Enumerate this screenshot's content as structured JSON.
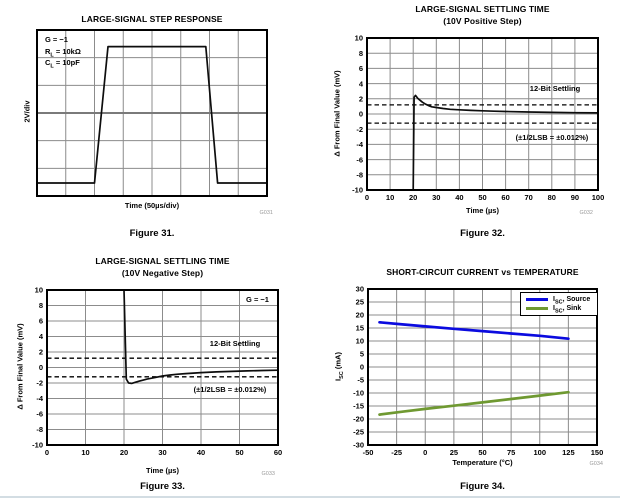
{
  "page": {
    "background": "#ffffff"
  },
  "chart_data": [
    {
      "type": "line",
      "figure": "Figure 31.",
      "title": "LARGE-SIGNAL STEP RESPONSE",
      "xlabel": "Time (50µs/div)",
      "ylabel": "2V/div",
      "scope_grid": true,
      "xlim": [
        0,
        8
      ],
      "ylim": [
        0,
        6
      ],
      "grid": "on",
      "annotations": [
        "G = −1",
        "RL = 10kΩ",
        "CL = 10pF"
      ],
      "series": [
        {
          "name": "output step response",
          "points": [
            [
              0,
              0.47
            ],
            [
              2.0,
              0.47
            ],
            [
              2.47,
              5.4
            ],
            [
              5.87,
              5.4
            ],
            [
              6.28,
              0.47
            ],
            [
              8,
              0.47
            ]
          ]
        }
      ]
    },
    {
      "type": "line",
      "figure": "Figure 32.",
      "title": "LARGE-SIGNAL SETTLING TIME",
      "subtitle": "(10V Positive Step)",
      "xlabel": "Time (µs)",
      "ylabel": "Δ From Final Value (mV)",
      "xlim": [
        0,
        100
      ],
      "ylim": [
        -10,
        10
      ],
      "xticks": [
        0,
        10,
        20,
        30,
        40,
        50,
        60,
        70,
        80,
        90,
        100
      ],
      "yticks": [
        -10,
        -8,
        -6,
        -4,
        -2,
        0,
        2,
        4,
        6,
        8,
        10
      ],
      "grid": "on",
      "dashed_y": [
        1.2,
        -1.2
      ],
      "annotations": [
        "12-Bit Settling",
        "(±1/2LSB = ±0.012%)"
      ],
      "series": [
        {
          "name": "settling error",
          "points": [
            [
              20,
              -10
            ],
            [
              20.4,
              2.2
            ],
            [
              21,
              2.45
            ],
            [
              22,
              2.05
            ],
            [
              23,
              1.8
            ],
            [
              24,
              1.55
            ],
            [
              25,
              1.35
            ],
            [
              26,
              1.2
            ],
            [
              27,
              1.05
            ],
            [
              28,
              0.95
            ],
            [
              30,
              0.85
            ],
            [
              33,
              0.72
            ],
            [
              36,
              0.62
            ],
            [
              40,
              0.55
            ],
            [
              45,
              0.47
            ],
            [
              50,
              0.42
            ],
            [
              55,
              0.37
            ],
            [
              60,
              0.33
            ],
            [
              70,
              0.26
            ],
            [
              80,
              0.21
            ],
            [
              90,
              0.17
            ],
            [
              100,
              0.15
            ]
          ]
        }
      ]
    },
    {
      "type": "line",
      "figure": "Figure 33.",
      "title": "LARGE-SIGNAL SETTLING TIME",
      "subtitle": "(10V Negative Step)",
      "xlabel": "Time (µs)",
      "ylabel": "Δ From Final Value (mV)",
      "xlim": [
        0,
        60
      ],
      "ylim": [
        -10,
        10
      ],
      "xticks": [
        0,
        10,
        20,
        30,
        40,
        50,
        60
      ],
      "yticks": [
        -10,
        -8,
        -6,
        -4,
        -2,
        0,
        2,
        4,
        6,
        8,
        10
      ],
      "grid": "on",
      "dashed_y": [
        1.2,
        -1.2
      ],
      "annotations": [
        "G = −1",
        "12-Bit Settling",
        "(±1/2LSB = ±0.012%)"
      ],
      "series": [
        {
          "name": "settling error",
          "points": [
            [
              20,
              10
            ],
            [
              20.6,
              -1.5
            ],
            [
              21.2,
              -2.0
            ],
            [
              22,
              -2.05
            ],
            [
              23,
              -1.9
            ],
            [
              24,
              -1.75
            ],
            [
              25,
              -1.62
            ],
            [
              26,
              -1.5
            ],
            [
              27,
              -1.4
            ],
            [
              28,
              -1.3
            ],
            [
              30,
              -1.1
            ],
            [
              32,
              -0.97
            ],
            [
              34,
              -0.87
            ],
            [
              36,
              -0.79
            ],
            [
              38,
              -0.72
            ],
            [
              40,
              -0.66
            ],
            [
              44,
              -0.57
            ],
            [
              48,
              -0.5
            ],
            [
              52,
              -0.44
            ],
            [
              56,
              -0.39
            ],
            [
              60,
              -0.35
            ]
          ]
        }
      ]
    },
    {
      "type": "line",
      "figure": "Figure 34.",
      "title": "SHORT-CIRCUIT CURRENT vs TEMPERATURE",
      "xlabel": "Temperature (°C)",
      "ylabel": "ISC (mA)",
      "xlim": [
        -50,
        150
      ],
      "ylim": [
        -30,
        30
      ],
      "xticks": [
        -50,
        -25,
        0,
        25,
        50,
        75,
        100,
        125,
        150
      ],
      "yticks": [
        -30,
        -25,
        -20,
        -15,
        -10,
        -5,
        0,
        5,
        10,
        15,
        20,
        25,
        30
      ],
      "grid": "on",
      "legend_position": "top-right",
      "series": [
        {
          "name": "ISC, Source",
          "color": "#0b0bdf",
          "points": [
            [
              -40,
              17.2
            ],
            [
              -20,
              16.4
            ],
            [
              0,
              15.6
            ],
            [
              25,
              14.7
            ],
            [
              50,
              13.8
            ],
            [
              75,
              12.9
            ],
            [
              100,
              12.0
            ],
            [
              125,
              10.9
            ]
          ]
        },
        {
          "name": "ISC, Sink",
          "color": "#6f9931",
          "points": [
            [
              -40,
              -18.3
            ],
            [
              -20,
              -17.2
            ],
            [
              0,
              -16.1
            ],
            [
              25,
              -14.9
            ],
            [
              50,
              -13.6
            ],
            [
              75,
              -12.3
            ],
            [
              100,
              -11.0
            ],
            [
              125,
              -9.7
            ]
          ]
        }
      ]
    }
  ],
  "figures": {
    "f31": {
      "caption": "Figure 31.",
      "code": "G031",
      "conditions": [
        {
          "pre": "G",
          "sub": "",
          "post": " = −1"
        },
        {
          "pre": "R",
          "sub": "L",
          "post": " = 10kΩ"
        },
        {
          "pre": "C",
          "sub": "L",
          "post": " = 10pF"
        }
      ]
    },
    "f32": {
      "caption": "Figure 32.",
      "code": "G032"
    },
    "f33": {
      "caption": "Figure 33.",
      "code": "G033"
    },
    "f34": {
      "caption": "Figure 34.",
      "code": "G034",
      "ylabel_parts": {
        "pre": "I",
        "sub": "SC",
        "post": " (mA)"
      },
      "legend": [
        {
          "pre": "I",
          "sub": "SC",
          "post": ", Source"
        },
        {
          "pre": "I",
          "sub": "SC",
          "post": ", Sink"
        }
      ]
    }
  }
}
